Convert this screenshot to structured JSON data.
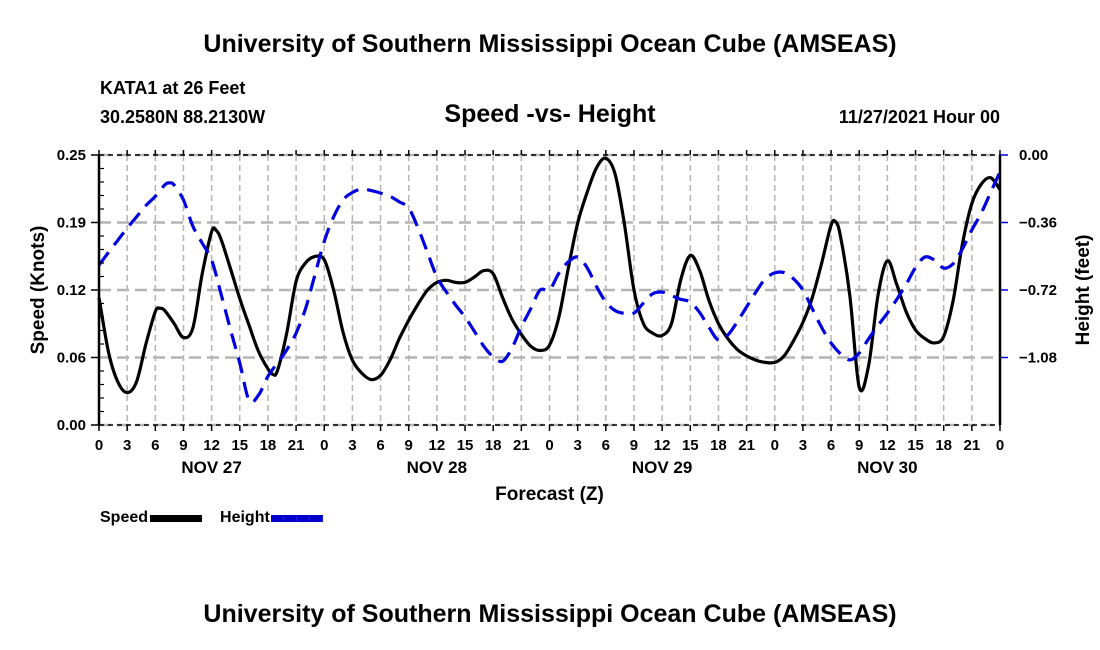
{
  "header": {
    "main_title": "University of Southern Mississippi Ocean Cube (AMSEAS)",
    "station": "KATA1 at 26 Feet",
    "coords": "30.2580N  88.2130W",
    "subtitle": "Speed -vs- Height",
    "datetime": "11/27/2021 Hour 00"
  },
  "footer": {
    "bottom_title": "University of Southern Mississippi Ocean Cube (AMSEAS)"
  },
  "legend": {
    "speed_label": "Speed",
    "height_label": "Height"
  },
  "colors": {
    "speed": "#000000",
    "height": "#0000e0",
    "grid": "#b4b4b4"
  },
  "chart_data": {
    "type": "line",
    "title": "Speed -vs- Height",
    "xlabel": "Forecast (Z)",
    "ylabel": "Speed (Knots)",
    "y2label": "Height (feet)",
    "xlim": [
      0,
      96
    ],
    "ylim": [
      0,
      0.25
    ],
    "y2lim": [
      -1.44,
      0
    ],
    "grid": true,
    "legend_position": "bottom-left",
    "x_tick_labels": [
      "0",
      "3",
      "6",
      "9",
      "12",
      "15",
      "18",
      "21",
      "0",
      "3",
      "6",
      "9",
      "12",
      "15",
      "18",
      "21",
      "0",
      "3",
      "6",
      "9",
      "12",
      "15",
      "18",
      "21",
      "0",
      "3",
      "6",
      "9",
      "12",
      "15",
      "18",
      "21",
      "0"
    ],
    "day_labels": [
      {
        "label": "NOV 27",
        "hour": 12
      },
      {
        "label": "NOV 28",
        "hour": 36
      },
      {
        "label": "NOV 29",
        "hour": 60
      },
      {
        "label": "NOV 30",
        "hour": 84
      }
    ],
    "y_ticks": [
      {
        "value": 0.0,
        "label": "0.00"
      },
      {
        "value": 0.0625,
        "label": "0.06"
      },
      {
        "value": 0.125,
        "label": "0.12"
      },
      {
        "value": 0.1875,
        "label": "0.19"
      },
      {
        "value": 0.25,
        "label": "0.25"
      }
    ],
    "y2_ticks": [
      {
        "value": 0.0,
        "label": "0.00"
      },
      {
        "value": -0.36,
        "label": "−0.36"
      },
      {
        "value": -0.72,
        "label": "−0.72"
      },
      {
        "value": -1.08,
        "label": "−1.08"
      }
    ],
    "series": [
      {
        "name": "Speed",
        "axis": "left",
        "style": "solid",
        "x": [
          0,
          1,
          2,
          3,
          4,
          5,
          6,
          6.5,
          7,
          8,
          9,
          10,
          11,
          12,
          12.5,
          13,
          14,
          15,
          16,
          17,
          18,
          18.5,
          19,
          20,
          21,
          22,
          23,
          24,
          25,
          26,
          27,
          28,
          29,
          30,
          31,
          32,
          33,
          34,
          35,
          36,
          37,
          38,
          39,
          40,
          41,
          42,
          43,
          44,
          45,
          46,
          47,
          48,
          49,
          50,
          51,
          52,
          53,
          54,
          55,
          56,
          57,
          58,
          59,
          60,
          61,
          62,
          63,
          64,
          65,
          66,
          67,
          68,
          69,
          70,
          71,
          72,
          73,
          74,
          75,
          76,
          77,
          78,
          78.5,
          79,
          80,
          81,
          82,
          83,
          84,
          85,
          86,
          87,
          88,
          89,
          90,
          91,
          92,
          93,
          94,
          95,
          96
        ],
        "values": [
          0.118,
          0.068,
          0.04,
          0.03,
          0.04,
          0.075,
          0.105,
          0.108,
          0.106,
          0.094,
          0.081,
          0.09,
          0.14,
          0.179,
          0.18,
          0.172,
          0.145,
          0.117,
          0.092,
          0.068,
          0.052,
          0.047,
          0.05,
          0.085,
          0.133,
          0.15,
          0.156,
          0.153,
          0.125,
          0.086,
          0.06,
          0.048,
          0.042,
          0.046,
          0.06,
          0.08,
          0.097,
          0.112,
          0.125,
          0.132,
          0.134,
          0.132,
          0.132,
          0.137,
          0.143,
          0.14,
          0.118,
          0.098,
          0.084,
          0.073,
          0.069,
          0.074,
          0.1,
          0.145,
          0.187,
          0.215,
          0.238,
          0.247,
          0.232,
          0.185,
          0.125,
          0.094,
          0.085,
          0.083,
          0.094,
          0.135,
          0.157,
          0.143,
          0.115,
          0.094,
          0.08,
          0.07,
          0.064,
          0.06,
          0.058,
          0.058,
          0.064,
          0.078,
          0.095,
          0.118,
          0.15,
          0.185,
          0.188,
          0.175,
          0.12,
          0.035,
          0.055,
          0.12,
          0.152,
          0.13,
          0.105,
          0.088,
          0.08,
          0.076,
          0.082,
          0.115,
          0.168,
          0.205,
          0.223,
          0.229,
          0.218
        ]
      },
      {
        "name": "Height",
        "axis": "right",
        "style": "dashed",
        "x": [
          0,
          1,
          2,
          3,
          4,
          5,
          6,
          7,
          7.5,
          8,
          9,
          10,
          11,
          12,
          13,
          14,
          15,
          16,
          17,
          18,
          19,
          20,
          21,
          22,
          23,
          24,
          25,
          26,
          27,
          28,
          29,
          30,
          31,
          32,
          33,
          34,
          35,
          36,
          37,
          38,
          39,
          40,
          41,
          42,
          43,
          44,
          45,
          46,
          47,
          48,
          49,
          50,
          51,
          52,
          53,
          54,
          55,
          56,
          57,
          58,
          59,
          60,
          61,
          62,
          63,
          64,
          65,
          66,
          67,
          68,
          69,
          70,
          71,
          72,
          73,
          74,
          75,
          76,
          77,
          78,
          79,
          80,
          81,
          82,
          83,
          84,
          85,
          86,
          87,
          88,
          89,
          90,
          91,
          92,
          93,
          94,
          95,
          96
        ],
        "values": [
          -0.587,
          -0.52,
          -0.455,
          -0.39,
          -0.33,
          -0.27,
          -0.22,
          -0.16,
          -0.149,
          -0.16,
          -0.24,
          -0.38,
          -0.47,
          -0.56,
          -0.74,
          -0.93,
          -1.11,
          -1.31,
          -1.28,
          -1.18,
          -1.11,
          -1.04,
          -0.95,
          -0.82,
          -0.64,
          -0.46,
          -0.33,
          -0.24,
          -0.2,
          -0.181,
          -0.19,
          -0.203,
          -0.22,
          -0.25,
          -0.283,
          -0.39,
          -0.52,
          -0.65,
          -0.73,
          -0.8,
          -0.864,
          -0.94,
          -1.02,
          -1.077,
          -1.1,
          -1.03,
          -0.917,
          -0.82,
          -0.72,
          -0.72,
          -0.63,
          -0.57,
          -0.544,
          -0.6,
          -0.7,
          -0.784,
          -0.83,
          -0.845,
          -0.843,
          -0.79,
          -0.74,
          -0.731,
          -0.75,
          -0.77,
          -0.784,
          -0.84,
          -0.92,
          -0.987,
          -0.96,
          -0.89,
          -0.81,
          -0.73,
          -0.66,
          -0.629,
          -0.627,
          -0.66,
          -0.72,
          -0.82,
          -0.92,
          -1.003,
          -1.06,
          -1.093,
          -1.056,
          -0.98,
          -0.91,
          -0.843,
          -0.77,
          -0.69,
          -0.6,
          -0.544,
          -0.56,
          -0.603,
          -0.58,
          -0.5,
          -0.4,
          -0.31,
          -0.2,
          -0.09
        ]
      }
    ]
  }
}
